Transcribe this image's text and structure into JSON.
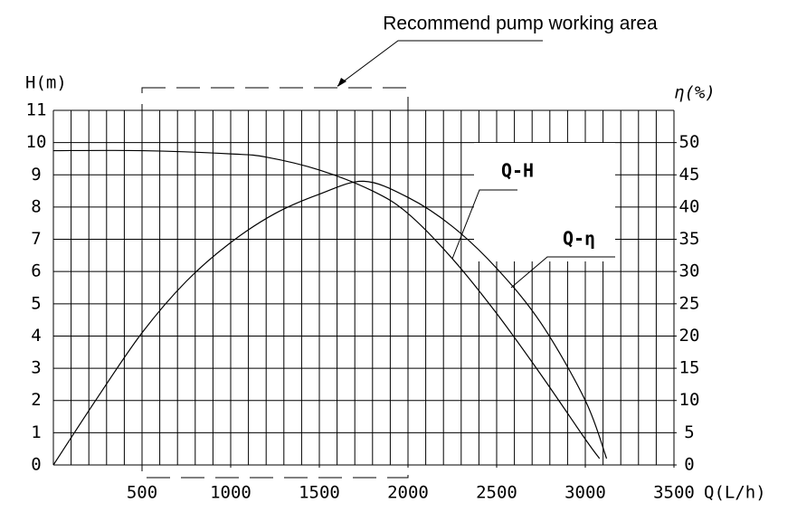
{
  "chart_data": {
    "type": "line",
    "annotation": "Recommend pump working area",
    "working_area": {
      "x": [
        500,
        2000
      ]
    },
    "x_label": "Q(L/h)",
    "y_label": "H(m)",
    "y2_label": "η(%)",
    "xlim": [
      0,
      3500
    ],
    "xticks": [
      500,
      1000,
      1500,
      2000,
      2500,
      3000,
      3500
    ],
    "ylim": [
      0,
      11
    ],
    "yticks": [
      0,
      1,
      2,
      3,
      4,
      5,
      6,
      7,
      8,
      9,
      10,
      11
    ],
    "y2lim": [
      0,
      55
    ],
    "y2ticks": [
      0,
      5,
      10,
      15,
      20,
      25,
      30,
      35,
      40,
      45,
      50
    ],
    "grid": true,
    "x_grid_step": 100,
    "series": [
      {
        "name": "Q-H",
        "color": "#000000",
        "x": [
          0,
          500,
          1000,
          1200,
          1500,
          1800,
          2000,
          2250,
          2500,
          2750,
          3000,
          3080
        ],
        "values": [
          9.75,
          9.75,
          9.65,
          9.55,
          9.15,
          8.5,
          7.8,
          6.4,
          4.7,
          2.8,
          0.8,
          0.2
        ]
      },
      {
        "name": "Q-η",
        "color": "#000000",
        "axis": "y2",
        "x": [
          0,
          250,
          500,
          750,
          1000,
          1250,
          1500,
          1750,
          2000,
          2250,
          2500,
          2750,
          3000,
          3120
        ],
        "values": [
          0,
          10.5,
          20.5,
          28.5,
          34.5,
          39,
          42,
          44,
          41.5,
          37,
          30.5,
          22,
          10,
          1
        ]
      }
    ]
  }
}
